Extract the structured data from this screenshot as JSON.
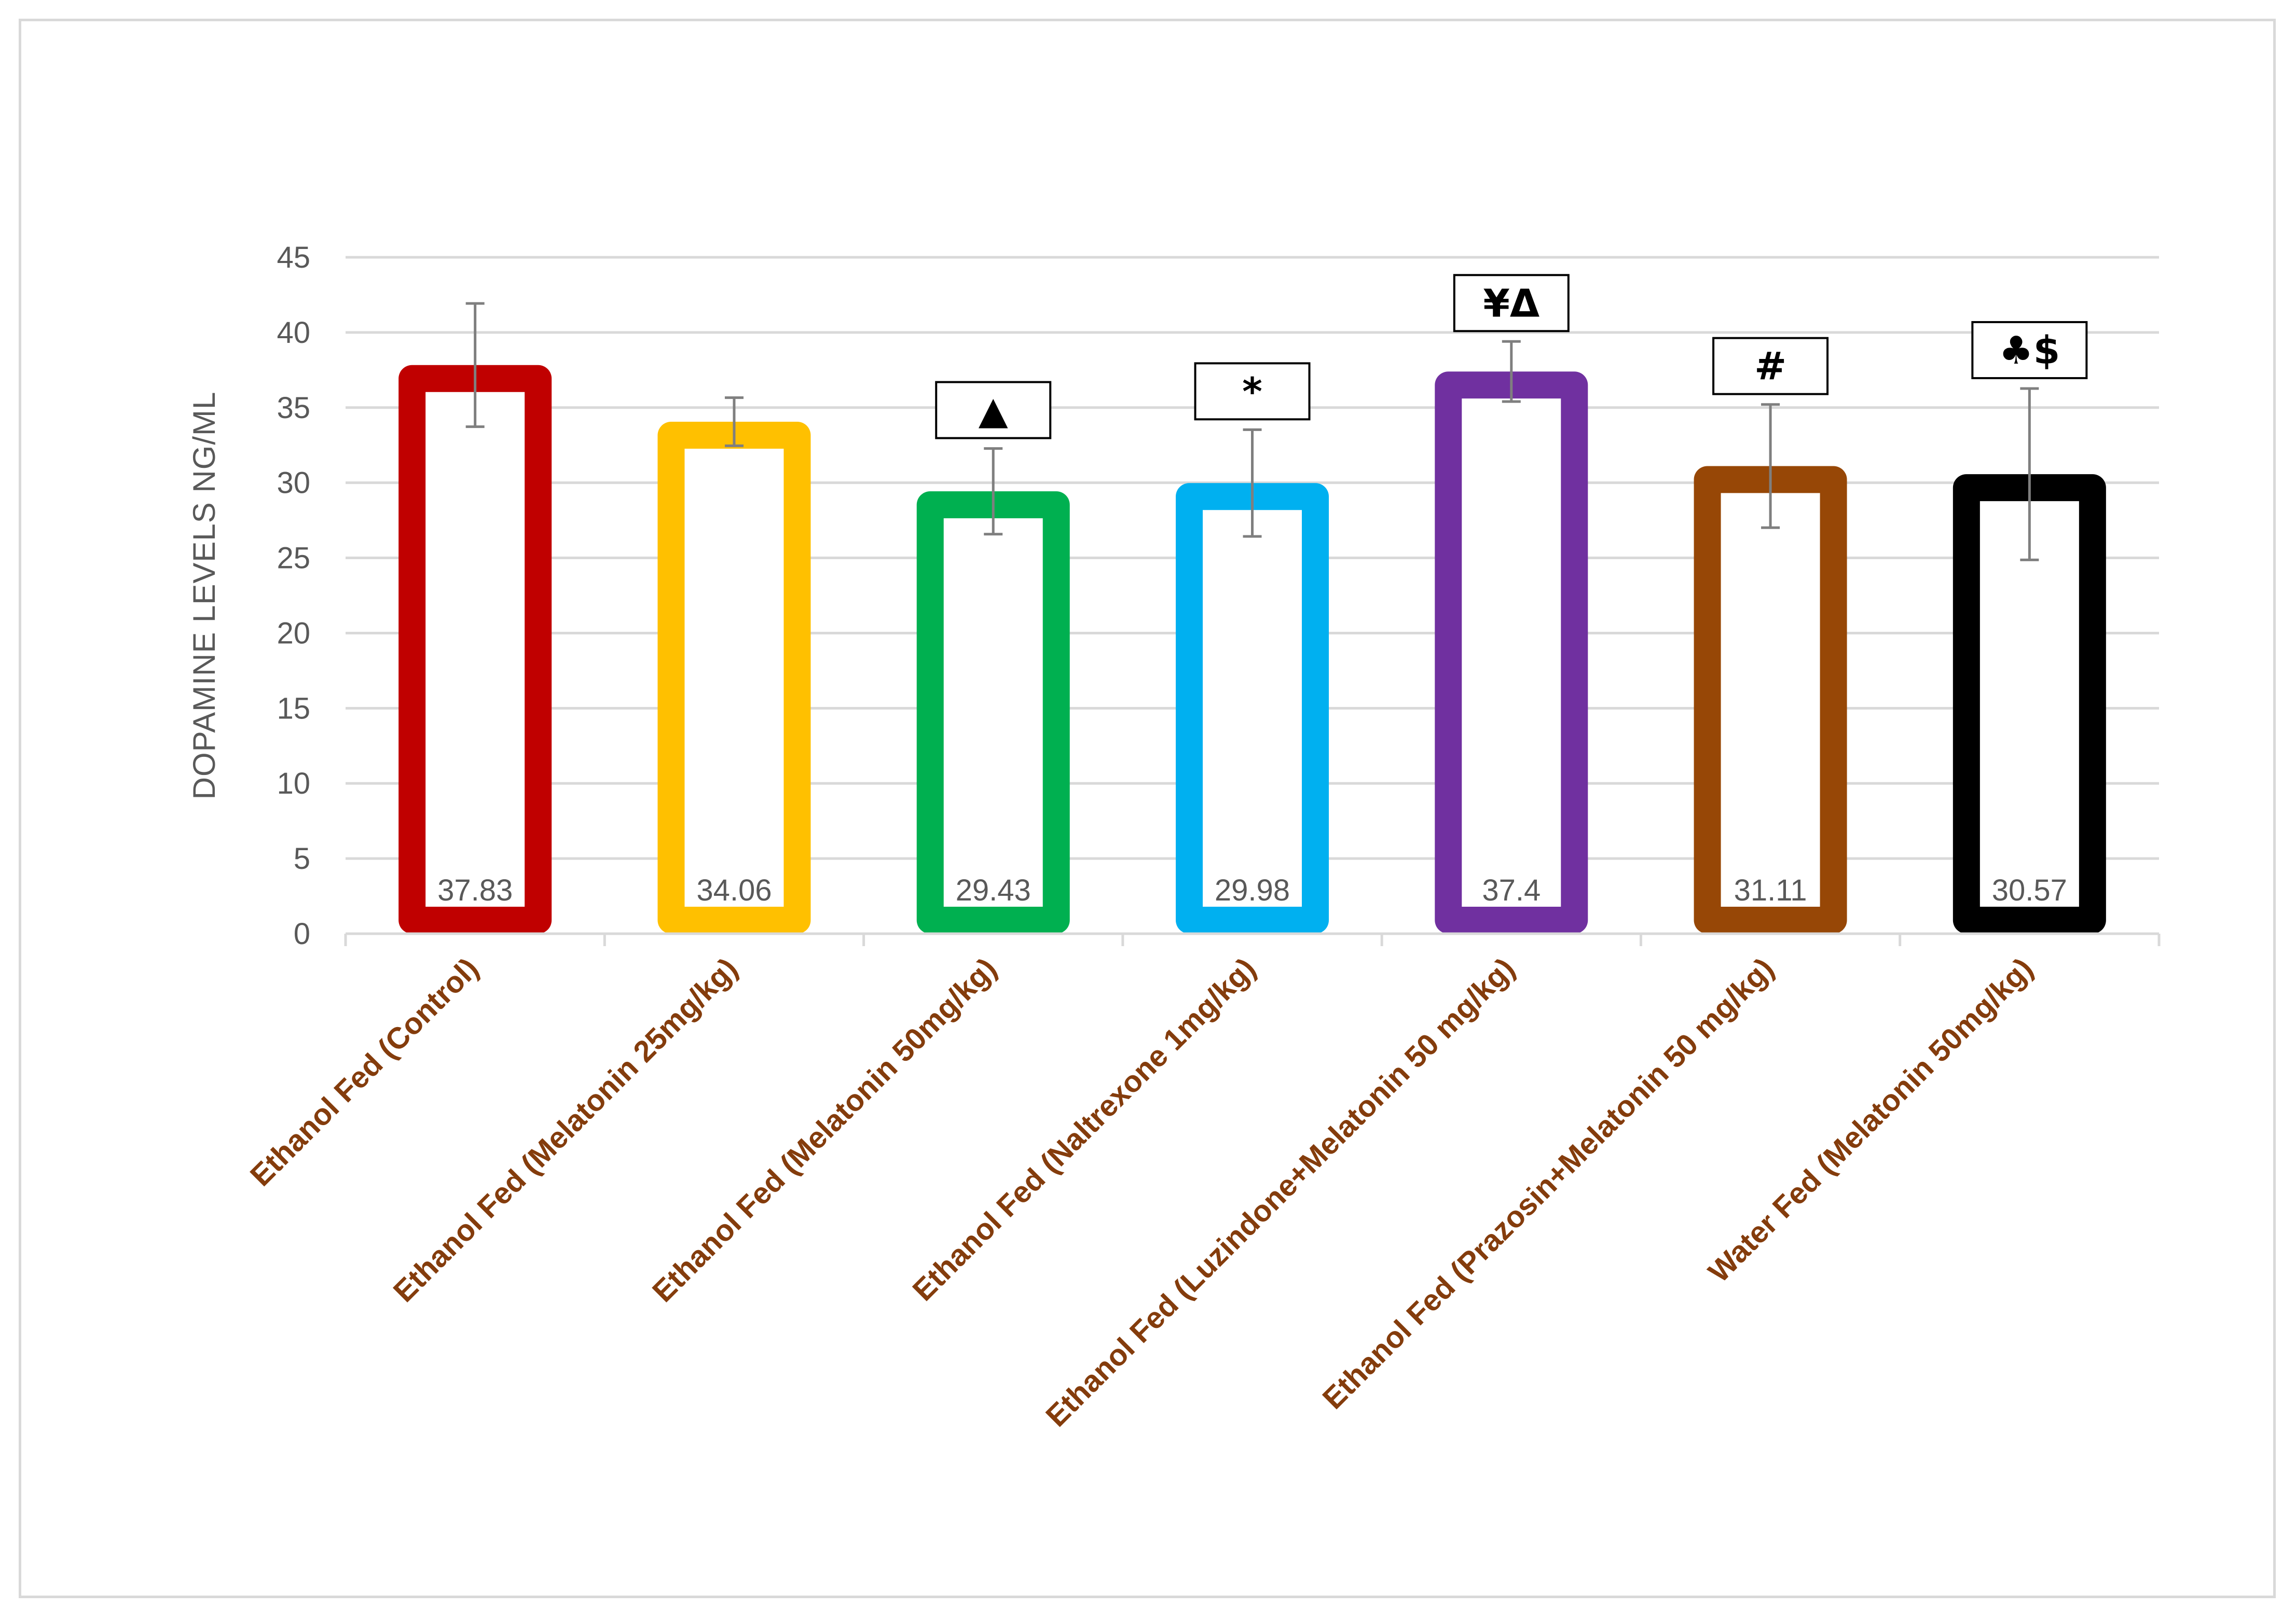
{
  "chart_data": {
    "type": "bar",
    "title": "",
    "xlabel": "",
    "ylabel": "DOPAMINE LEVELS NG/ML",
    "ylim": [
      0,
      45
    ],
    "yticks": [
      0,
      5,
      10,
      15,
      20,
      25,
      30,
      35,
      40,
      45
    ],
    "grid": true,
    "legend": "none",
    "categories": [
      "Ethanol Fed (Control)",
      "Ethanol Fed (Melatonin 25mg/kg)",
      "Ethanol Fed (Melatonin 50mg/kg)",
      "Ethanol Fed (Naltrexone 1mg/kg)",
      "Ethanol Fed (Luzindone+Melatonin 50 mg/kg)",
      "Ethanol Fed (Prazosin+Melatonin 50 mg/kg)",
      "Water Fed (Melatonin 50mg/kg)"
    ],
    "values": [
      37.83,
      34.06,
      29.43,
      29.98,
      37.4,
      31.11,
      30.57
    ],
    "value_labels": [
      "37.83",
      "34.06",
      "29.43",
      "29.98",
      "37.4",
      "31.11",
      "30.57"
    ],
    "error": [
      4.1,
      1.6,
      2.85,
      3.55,
      2.0,
      4.1,
      5.7
    ],
    "annotations": [
      "",
      "",
      "▲",
      "*",
      "¥Δ",
      "#",
      "♣$"
    ],
    "bar_colors": [
      "#c00000",
      "#ffc000",
      "#00b050",
      "#00b0f0",
      "#7030a0",
      "#974706",
      "#000000"
    ],
    "axis_text_color": "#595959",
    "category_label_color": "#843c0c",
    "gridline_color": "#d9d9d9",
    "error_bar_color": "#7f7f7f"
  }
}
